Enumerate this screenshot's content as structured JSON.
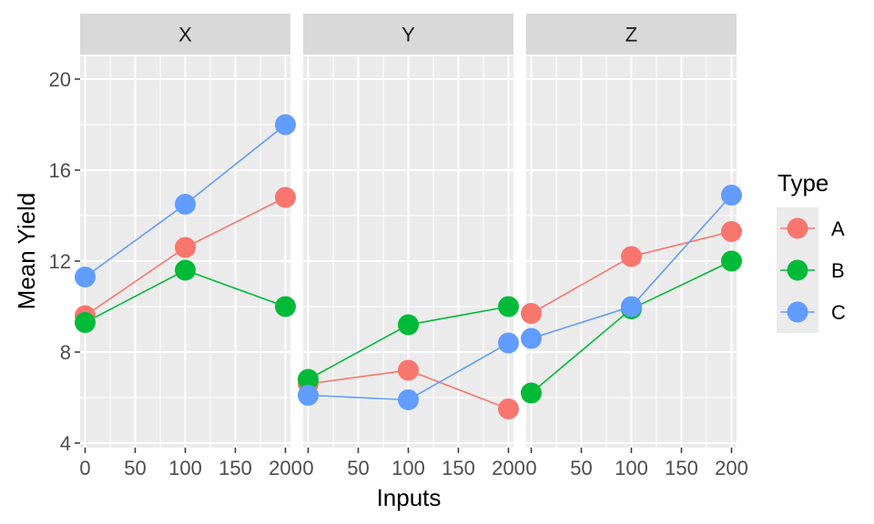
{
  "chart_data": {
    "type": "line",
    "xlabel": "Inputs",
    "ylabel": "Mean Yield",
    "xlim": [
      -5,
      205
    ],
    "ylim": [
      3.8,
      21.0
    ],
    "x_ticks": [
      0,
      50,
      100,
      150,
      200
    ],
    "y_ticks": [
      4,
      8,
      12,
      16,
      20
    ],
    "x": [
      0,
      100,
      200
    ],
    "legend": {
      "title": "Type",
      "position": "right"
    },
    "colors": {
      "A": "#F8766D",
      "B": "#00BA38",
      "C": "#619CFF"
    },
    "panels": [
      {
        "label": "X",
        "series": [
          {
            "name": "A",
            "values": [
              9.6,
              12.6,
              14.8
            ]
          },
          {
            "name": "B",
            "values": [
              9.3,
              11.6,
              10.0
            ]
          },
          {
            "name": "C",
            "values": [
              11.3,
              14.5,
              18.0
            ]
          }
        ]
      },
      {
        "label": "Y",
        "series": [
          {
            "name": "A",
            "values": [
              6.6,
              7.2,
              5.5
            ]
          },
          {
            "name": "B",
            "values": [
              6.8,
              9.2,
              10.0
            ]
          },
          {
            "name": "C",
            "values": [
              6.1,
              5.9,
              8.4
            ]
          }
        ]
      },
      {
        "label": "Z",
        "series": [
          {
            "name": "A",
            "values": [
              9.7,
              12.2,
              13.3
            ]
          },
          {
            "name": "B",
            "values": [
              6.2,
              9.9,
              12.0
            ]
          },
          {
            "name": "C",
            "values": [
              8.6,
              10.0,
              14.9
            ]
          }
        ]
      }
    ]
  }
}
